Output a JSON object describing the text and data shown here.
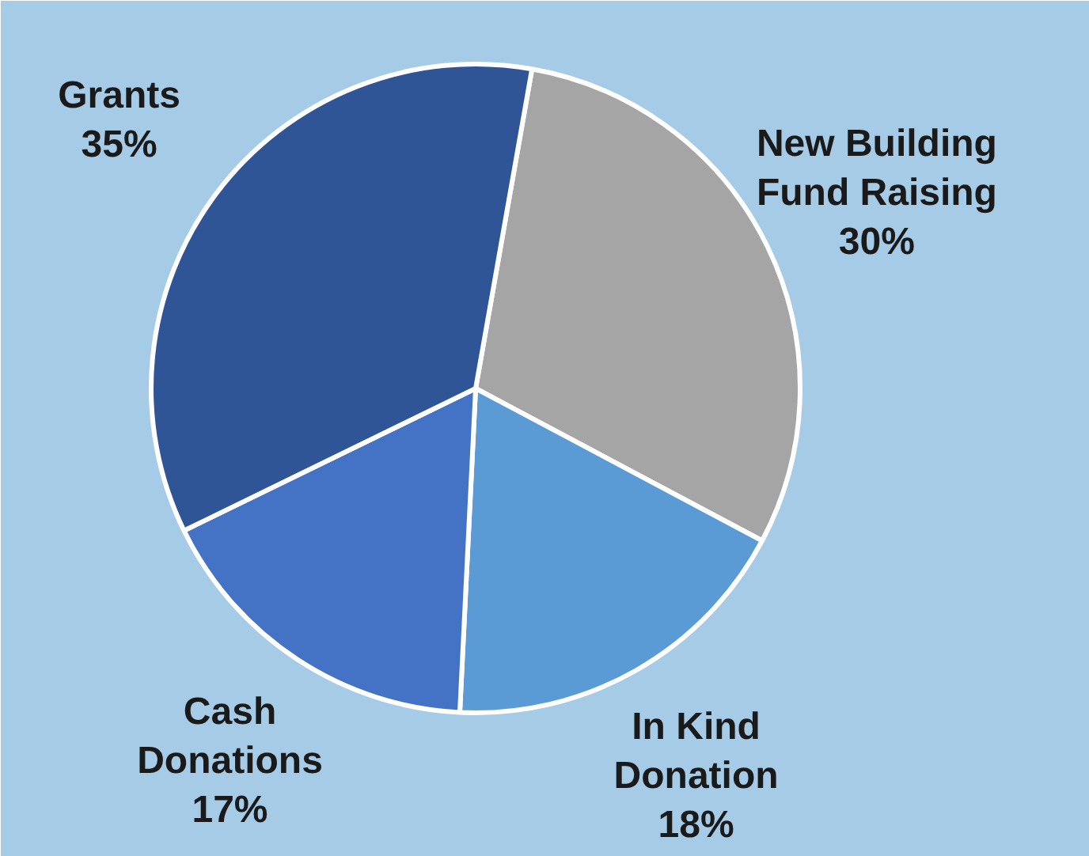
{
  "chart_data": {
    "type": "pie",
    "categories": [
      "New Building\nFund Raising",
      "In Kind\nDonation",
      "Cash\nDonations",
      "Grants"
    ],
    "values": [
      30,
      18,
      17,
      35
    ],
    "colors": [
      "#a5a5a5",
      "#5b9bd5",
      "#4472c4",
      "#2f5597"
    ],
    "value_labels": [
      "30%",
      "18%",
      "17%",
      "35%"
    ]
  }
}
